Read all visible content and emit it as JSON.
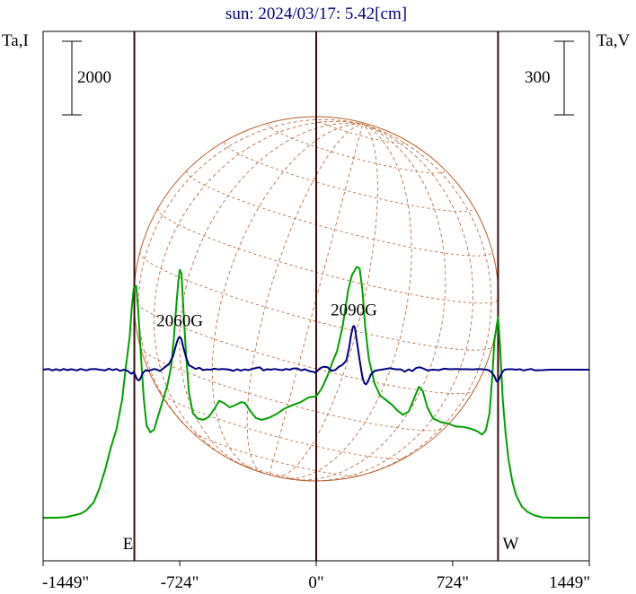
{
  "chart_data": {
    "type": "line",
    "title": "sun: 2024/03/17: 5.42[cm]",
    "left_axis_label": "Ta,I",
    "right_axis_label": "Ta,V",
    "left_scale_bar_label": "2000",
    "right_scale_bar_label": "300",
    "x_unit": "arcsec",
    "xlim": [
      -1449,
      1449
    ],
    "x_ticks": [
      -1449,
      -724,
      0,
      724,
      1449
    ],
    "x_tick_labels": [
      "-1449\"",
      "-724\"",
      "0\"",
      "724\"",
      "1449\""
    ],
    "limb_markers": [
      {
        "x": -965,
        "label": "E"
      },
      {
        "x": 0,
        "label": ""
      },
      {
        "x": 965,
        "label": "W"
      }
    ],
    "annotations": [
      {
        "text": "2060G",
        "x": -724,
        "series": "V"
      },
      {
        "text": "2090G",
        "x": 200,
        "series": "V"
      }
    ],
    "series": [
      {
        "key": "I",
        "color": "#00a000",
        "points": [
          [
            -1449,
            0
          ],
          [
            -1380,
            0
          ],
          [
            -1330,
            15
          ],
          [
            -1290,
            60
          ],
          [
            -1250,
            110
          ],
          [
            -1220,
            200
          ],
          [
            -1180,
            420
          ],
          [
            -1150,
            800
          ],
          [
            -1120,
            1300
          ],
          [
            -1090,
            1900
          ],
          [
            -1060,
            2400
          ],
          [
            -1030,
            3200
          ],
          [
            -1010,
            4100
          ],
          [
            -990,
            4900
          ],
          [
            -978,
            5750
          ],
          [
            -968,
            6240
          ],
          [
            -955,
            6300
          ],
          [
            -945,
            5700
          ],
          [
            -930,
            4400
          ],
          [
            -915,
            3250
          ],
          [
            -900,
            2500
          ],
          [
            -880,
            2320
          ],
          [
            -860,
            2400
          ],
          [
            -840,
            2750
          ],
          [
            -810,
            3250
          ],
          [
            -790,
            3600
          ],
          [
            -770,
            4100
          ],
          [
            -755,
            4900
          ],
          [
            -740,
            5900
          ],
          [
            -730,
            6500
          ],
          [
            -724,
            6740
          ],
          [
            -715,
            6650
          ],
          [
            -705,
            5700
          ],
          [
            -690,
            4400
          ],
          [
            -675,
            3400
          ],
          [
            -655,
            2850
          ],
          [
            -630,
            2700
          ],
          [
            -600,
            2660
          ],
          [
            -570,
            2740
          ],
          [
            -540,
            2960
          ],
          [
            -515,
            3180
          ],
          [
            -490,
            3120
          ],
          [
            -460,
            3000
          ],
          [
            -430,
            3060
          ],
          [
            -400,
            3140
          ],
          [
            -380,
            3130
          ],
          [
            -350,
            2900
          ],
          [
            -320,
            2710
          ],
          [
            -290,
            2660
          ],
          [
            -250,
            2720
          ],
          [
            -210,
            2820
          ],
          [
            -170,
            2960
          ],
          [
            -120,
            3070
          ],
          [
            -80,
            3150
          ],
          [
            -40,
            3270
          ],
          [
            0,
            3300
          ],
          [
            30,
            3520
          ],
          [
            60,
            3860
          ],
          [
            90,
            4280
          ],
          [
            110,
            4520
          ],
          [
            140,
            5200
          ],
          [
            170,
            6200
          ],
          [
            190,
            6600
          ],
          [
            215,
            6820
          ],
          [
            230,
            6780
          ],
          [
            245,
            6200
          ],
          [
            260,
            5200
          ],
          [
            280,
            4300
          ],
          [
            310,
            3650
          ],
          [
            340,
            3320
          ],
          [
            370,
            3200
          ],
          [
            400,
            3080
          ],
          [
            430,
            2920
          ],
          [
            460,
            2800
          ],
          [
            490,
            2880
          ],
          [
            520,
            3250
          ],
          [
            545,
            3560
          ],
          [
            565,
            3450
          ],
          [
            590,
            3000
          ],
          [
            620,
            2700
          ],
          [
            660,
            2600
          ],
          [
            700,
            2560
          ],
          [
            740,
            2480
          ],
          [
            780,
            2470
          ],
          [
            820,
            2420
          ],
          [
            855,
            2350
          ],
          [
            880,
            2260
          ],
          [
            900,
            2370
          ],
          [
            920,
            2850
          ],
          [
            935,
            3900
          ],
          [
            945,
            4800
          ],
          [
            955,
            5150
          ],
          [
            965,
            5450
          ],
          [
            975,
            4700
          ],
          [
            990,
            3200
          ],
          [
            1005,
            2300
          ],
          [
            1020,
            1600
          ],
          [
            1040,
            1000
          ],
          [
            1060,
            620
          ],
          [
            1090,
            310
          ],
          [
            1120,
            160
          ],
          [
            1160,
            60
          ],
          [
            1200,
            10
          ],
          [
            1260,
            0
          ],
          [
            1449,
            0
          ]
        ]
      },
      {
        "key": "V",
        "color": "#000080",
        "points": [
          [
            -1449,
            0
          ],
          [
            -1420,
            3
          ],
          [
            -1400,
            -3
          ],
          [
            -1380,
            2
          ],
          [
            -1360,
            -3
          ],
          [
            -1340,
            3
          ],
          [
            -1320,
            -2
          ],
          [
            -1300,
            2
          ],
          [
            -1270,
            -3
          ],
          [
            -1250,
            3
          ],
          [
            -1220,
            -3
          ],
          [
            -1200,
            2
          ],
          [
            -1170,
            3
          ],
          [
            -1150,
            0
          ],
          [
            -1120,
            -3
          ],
          [
            -1100,
            4
          ],
          [
            -1080,
            -2
          ],
          [
            -1060,
            3
          ],
          [
            -1040,
            -5
          ],
          [
            -1020,
            0
          ],
          [
            -1000,
            -5
          ],
          [
            -990,
            -12
          ],
          [
            -980,
            -17
          ],
          [
            -970,
            -10
          ],
          [
            -960,
            -23
          ],
          [
            -950,
            -40
          ],
          [
            -940,
            -44
          ],
          [
            -930,
            -32
          ],
          [
            -920,
            -14
          ],
          [
            -905,
            -2
          ],
          [
            -890,
            -5
          ],
          [
            -875,
            -1
          ],
          [
            -860,
            3
          ],
          [
            -845,
            0
          ],
          [
            -830,
            -5
          ],
          [
            -815,
            3
          ],
          [
            -800,
            12
          ],
          [
            -780,
            25
          ],
          [
            -760,
            55
          ],
          [
            -740,
            110
          ],
          [
            -730,
            130
          ],
          [
            -724,
            133
          ],
          [
            -715,
            125
          ],
          [
            -705,
            90
          ],
          [
            -690,
            50
          ],
          [
            -675,
            18
          ],
          [
            -655,
            10
          ],
          [
            -640,
            3
          ],
          [
            -620,
            8
          ],
          [
            -600,
            -2
          ],
          [
            -580,
            1
          ],
          [
            -560,
            0
          ],
          [
            -540,
            4
          ],
          [
            -520,
            1
          ],
          [
            -500,
            3
          ],
          [
            -480,
            2
          ],
          [
            -460,
            0
          ],
          [
            -440,
            -5
          ],
          [
            -420,
            2
          ],
          [
            -400,
            -4
          ],
          [
            -380,
            1
          ],
          [
            -360,
            -2
          ],
          [
            -340,
            3
          ],
          [
            -320,
            7
          ],
          [
            -300,
            10
          ],
          [
            -280,
            -3
          ],
          [
            -260,
            2
          ],
          [
            -240,
            0
          ],
          [
            -220,
            3
          ],
          [
            -200,
            0
          ],
          [
            -180,
            -2
          ],
          [
            -160,
            3
          ],
          [
            -140,
            0
          ],
          [
            -120,
            5
          ],
          [
            -100,
            5
          ],
          [
            -80,
            -3
          ],
          [
            -60,
            2
          ],
          [
            -40,
            -5
          ],
          [
            -20,
            -8
          ],
          [
            -5,
            -12
          ],
          [
            5,
            -6
          ],
          [
            20,
            6
          ],
          [
            40,
            12
          ],
          [
            60,
            10
          ],
          [
            80,
            -4
          ],
          [
            100,
            -2
          ],
          [
            120,
            12
          ],
          [
            140,
            20
          ],
          [
            160,
            38
          ],
          [
            175,
            90
          ],
          [
            185,
            140
          ],
          [
            195,
            175
          ],
          [
            200,
            178
          ],
          [
            205,
            172
          ],
          [
            215,
            120
          ],
          [
            230,
            40
          ],
          [
            245,
            -30
          ],
          [
            255,
            -55
          ],
          [
            265,
            -60
          ],
          [
            275,
            -48
          ],
          [
            290,
            -20
          ],
          [
            310,
            -5
          ],
          [
            330,
            -2
          ],
          [
            360,
            2
          ],
          [
            390,
            6
          ],
          [
            420,
            2
          ],
          [
            450,
            1
          ],
          [
            470,
            -8
          ],
          [
            490,
            1
          ],
          [
            510,
            -6
          ],
          [
            530,
            7
          ],
          [
            550,
            10
          ],
          [
            565,
            6
          ],
          [
            590,
            -3
          ],
          [
            620,
            0
          ],
          [
            650,
            -2
          ],
          [
            680,
            4
          ],
          [
            710,
            2
          ],
          [
            740,
            3
          ],
          [
            770,
            2
          ],
          [
            800,
            2
          ],
          [
            830,
            1
          ],
          [
            860,
            3
          ],
          [
            880,
            2
          ],
          [
            900,
            0
          ],
          [
            915,
            -2
          ],
          [
            930,
            -10
          ],
          [
            945,
            -26
          ],
          [
            955,
            -45
          ],
          [
            962,
            -50
          ],
          [
            970,
            -40
          ],
          [
            980,
            -22
          ],
          [
            990,
            -7
          ],
          [
            1000,
            0
          ],
          [
            1020,
            2
          ],
          [
            1040,
            2
          ],
          [
            1060,
            0
          ],
          [
            1080,
            2
          ],
          [
            1100,
            -3
          ],
          [
            1120,
            0
          ],
          [
            1140,
            3
          ],
          [
            1160,
            -3
          ],
          [
            1200,
            -2
          ],
          [
            1240,
            0
          ],
          [
            1280,
            0
          ],
          [
            1320,
            0
          ],
          [
            1449,
            0
          ]
        ]
      }
    ]
  }
}
